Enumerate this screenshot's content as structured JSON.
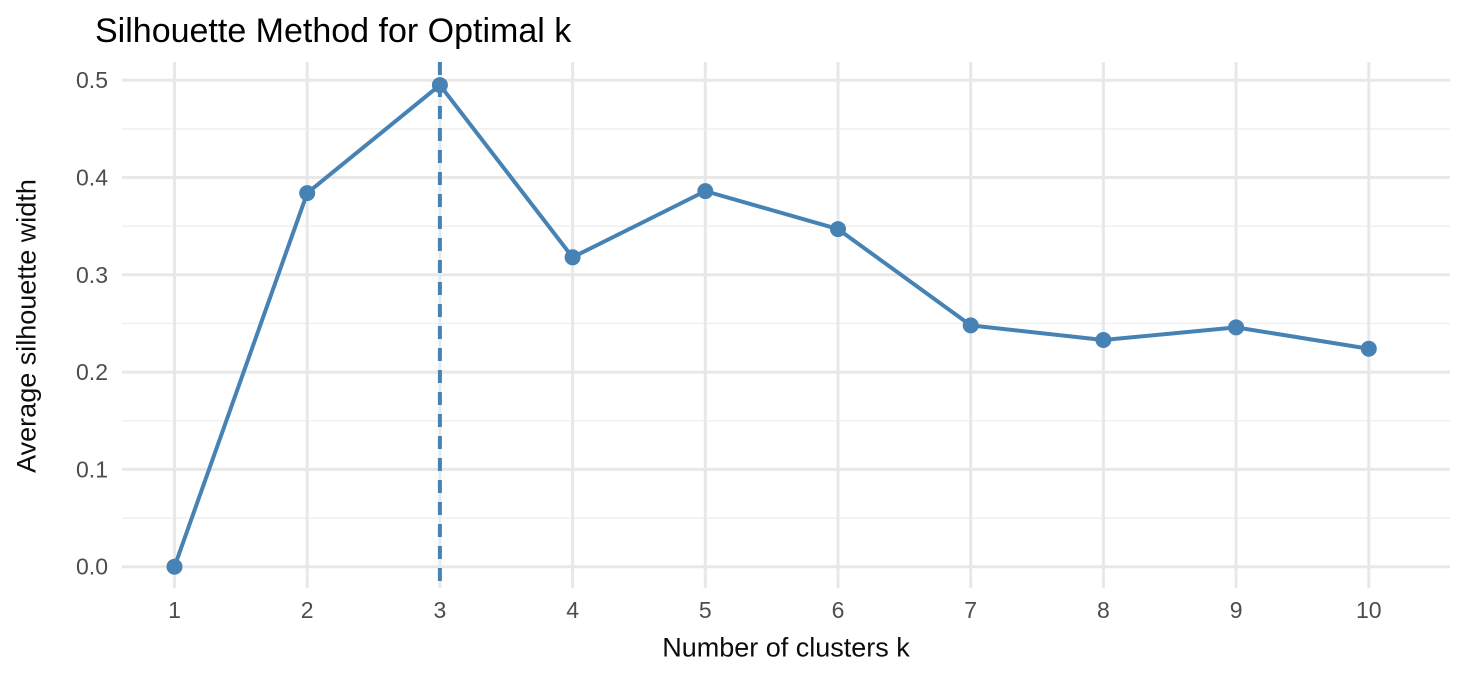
{
  "chart_data": {
    "type": "line",
    "title": "Silhouette Method for Optimal k",
    "xlabel": "Number of clusters k",
    "ylabel": "Average silhouette width",
    "x": [
      1,
      2,
      3,
      4,
      5,
      6,
      7,
      8,
      9,
      10
    ],
    "series": [
      {
        "name": "Average silhouette width",
        "values": [
          0.0,
          0.384,
          0.495,
          0.318,
          0.386,
          0.347,
          0.248,
          0.233,
          0.246,
          0.224
        ]
      }
    ],
    "optimal_k": 3,
    "optimal_k_line_style": "dashed",
    "x_tick_labels": [
      "1",
      "2",
      "3",
      "4",
      "5",
      "6",
      "7",
      "8",
      "9",
      "10"
    ],
    "y_ticks": [
      0.0,
      0.1,
      0.2,
      0.3,
      0.4,
      0.5
    ],
    "y_tick_labels": [
      "0.0",
      "0.1",
      "0.2",
      "0.3",
      "0.4",
      "0.5"
    ],
    "y_minor_ticks": [
      0.05,
      0.15,
      0.25,
      0.35,
      0.45
    ],
    "xlim": [
      0.6,
      10.6
    ],
    "ylim": [
      -0.025,
      0.52
    ],
    "grid": "on",
    "legend": "none",
    "colors": {
      "series": "#4682B4",
      "vline": "#4682B4",
      "grid_major": "#E8E8E8",
      "grid_minor": "#F1F1F1",
      "tick_text": "#4D4D4D",
      "title_text": "#000000",
      "background": "#FFFFFF"
    }
  }
}
